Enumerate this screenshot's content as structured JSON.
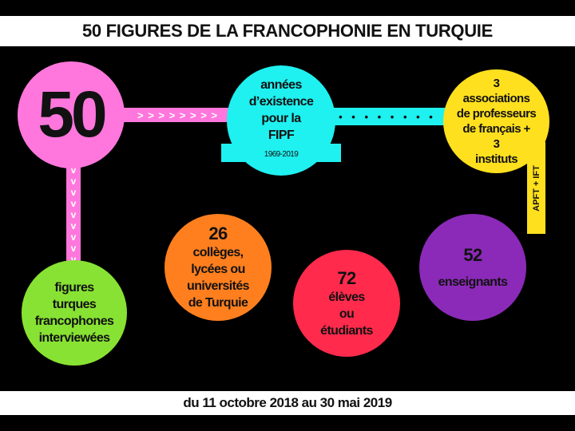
{
  "title": "50 FIGURES DE LA FRANCOPHONIE EN TURQUIE",
  "footer": "du 11 octobre 2018 au 30 mai 2019",
  "colors": {
    "pink": "#ff77dd",
    "cyan": "#1ff0f0",
    "yellow": "#ffe01e",
    "green": "#88e233",
    "orange": "#ff7f1e",
    "red": "#ff2a4c",
    "purple": "#8b2ab8"
  },
  "main_figure": {
    "number": "50",
    "label_lines": [
      "figures",
      "turques",
      "francophones",
      "interviewées"
    ]
  },
  "fipf": {
    "lines": [
      "années",
      "d’existence",
      "pour la",
      "FIPF"
    ],
    "dates": "1969-2019"
  },
  "associations": {
    "lines": [
      "3",
      "associations",
      "de professeurs",
      "de français +",
      "3",
      "instituts"
    ],
    "side_label": "APFT + IFT"
  },
  "schools": {
    "number": "26",
    "lines": [
      "collèges,",
      "lycées ou",
      "universités",
      "de Turquie"
    ]
  },
  "students": {
    "number": "72",
    "lines": [
      "élèves",
      "ou",
      "étudiants"
    ]
  },
  "teachers": {
    "number": "52",
    "lines": [
      "enseignants"
    ]
  },
  "connectors": {
    "horizontal_arrow": "> > > > > > > >",
    "dots": "• • • • • • • •",
    "vertical_arrow": [
      "v",
      "v",
      "v",
      "v",
      "v",
      "v",
      "v",
      "v",
      "v"
    ]
  }
}
